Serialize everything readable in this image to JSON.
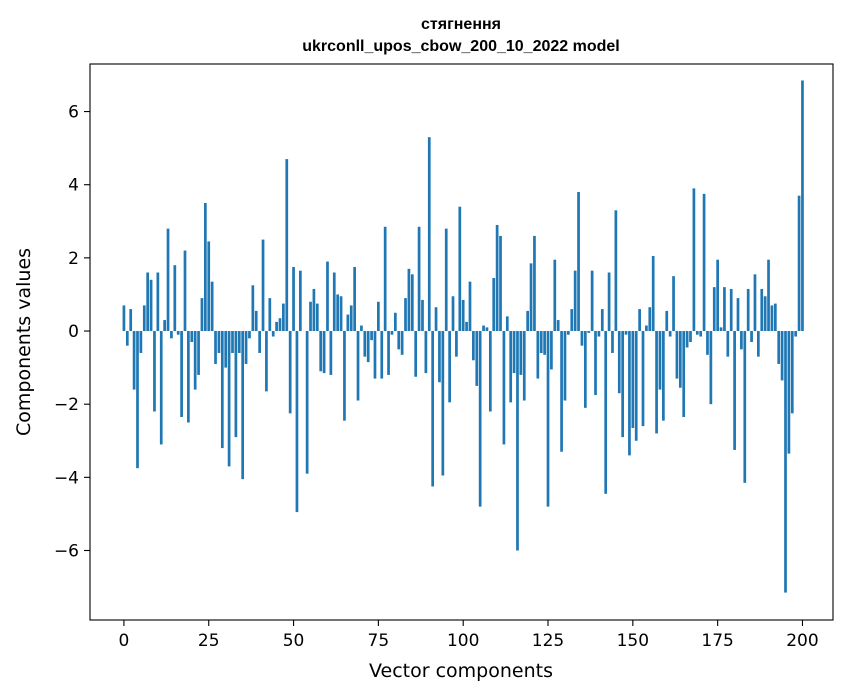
{
  "chart_data": {
    "type": "bar",
    "title": [
      "стягнення",
      "ukrconll_upos_cbow_200_10_2022 model"
    ],
    "xlabel": "Vector components",
    "ylabel": "Components values",
    "xlim": [
      -10,
      209
    ],
    "ylim": [
      -7.9,
      7.3
    ],
    "xticks": [
      0,
      25,
      50,
      75,
      100,
      125,
      150,
      175,
      200
    ],
    "yticks": [
      -6,
      -4,
      -2,
      0,
      2,
      4,
      6
    ],
    "xtick_labels": [
      "0",
      "25",
      "50",
      "75",
      "100",
      "125",
      "150",
      "175",
      "200"
    ],
    "ytick_labels": [
      "−6",
      "−4",
      "−2",
      "0",
      "2",
      "4",
      "6"
    ],
    "bar_color": "#1f77b4",
    "values": [
      0.7,
      -0.4,
      0.6,
      -1.6,
      -3.75,
      -0.6,
      0.7,
      1.6,
      1.4,
      -2.2,
      1.6,
      -3.1,
      0.3,
      2.8,
      -0.2,
      1.8,
      -0.1,
      -2.35,
      2.2,
      -2.5,
      -0.3,
      -1.6,
      -1.2,
      0.9,
      3.5,
      2.45,
      1.35,
      -0.9,
      -0.6,
      -3.2,
      -1.0,
      -3.7,
      -0.6,
      -2.9,
      -0.6,
      -4.05,
      -0.9,
      -0.2,
      1.25,
      0.55,
      -0.6,
      2.5,
      -1.65,
      0.9,
      -0.15,
      0.25,
      0.35,
      0.75,
      4.7,
      -2.25,
      1.75,
      -4.95,
      1.65,
      0.0,
      -3.9,
      0.8,
      1.15,
      0.75,
      -1.1,
      -1.15,
      1.9,
      -1.2,
      1.6,
      1.0,
      0.95,
      -2.45,
      0.45,
      0.7,
      1.75,
      -1.9,
      0.15,
      -0.7,
      -0.85,
      -0.25,
      -1.3,
      0.8,
      -1.3,
      2.85,
      -1.2,
      -0.1,
      0.5,
      -0.5,
      -0.65,
      0.9,
      1.7,
      1.55,
      -1.25,
      2.85,
      0.85,
      -1.15,
      5.3,
      -4.25,
      0.65,
      -1.4,
      -3.95,
      2.8,
      -1.95,
      0.95,
      -0.7,
      3.4,
      0.85,
      0.25,
      1.35,
      -0.8,
      -1.5,
      -4.8,
      0.15,
      0.1,
      -2.2,
      1.45,
      2.9,
      2.6,
      -3.1,
      0.4,
      -1.95,
      -1.15,
      -6.0,
      -1.2,
      -1.9,
      0.55,
      1.85,
      2.6,
      -1.3,
      -0.6,
      -0.65,
      -4.8,
      -1.05,
      1.95,
      0.3,
      -3.3,
      -1.9,
      -0.1,
      0.6,
      1.65,
      3.8,
      -0.4,
      -2.1,
      -0.05,
      1.65,
      -1.75,
      -0.15,
      0.6,
      -4.45,
      1.6,
      -0.6,
      3.3,
      -1.7,
      -2.9,
      -0.1,
      -3.4,
      -2.65,
      -3.0,
      0.6,
      -2.6,
      0.15,
      0.65,
      2.05,
      -2.8,
      -1.6,
      -2.45,
      0.55,
      -0.15,
      1.5,
      -1.3,
      -1.55,
      -2.35,
      -0.45,
      -0.3,
      3.9,
      -0.1,
      -0.15,
      3.75,
      -0.65,
      -2.0,
      1.2,
      1.95,
      0.1,
      1.2,
      -0.7,
      1.15,
      -3.25,
      0.9,
      -0.5,
      -4.15,
      1.15,
      -0.3,
      1.55,
      -0.7,
      1.15,
      0.95,
      1.95,
      0.7,
      0.75,
      -0.9,
      -1.35,
      -7.15,
      -3.35,
      -2.25,
      -0.15,
      3.7,
      6.85
    ]
  }
}
